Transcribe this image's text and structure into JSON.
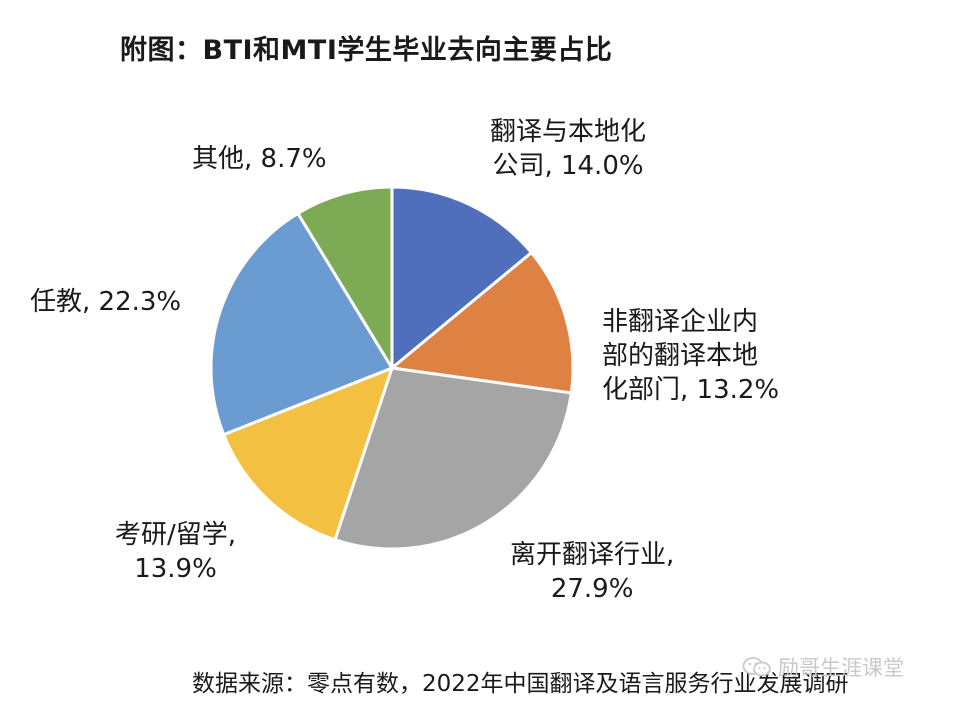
{
  "chart_data": {
    "type": "pie",
    "title": "附图：BTI和MTI学生毕业去向主要占比",
    "slices": [
      {
        "label": "翻译与本地化\n公司, 14.0%",
        "value": 14.0,
        "color": "#4f6fbd"
      },
      {
        "label": "非翻译企业内\n部的翻译本地\n化部门, 13.2%",
        "value": 13.2,
        "color": "#de8244"
      },
      {
        "label": "离开翻译行业,\n27.9%",
        "value": 27.9,
        "color": "#a5a5a5"
      },
      {
        "label": "考研/留学,\n13.9%",
        "value": 13.9,
        "color": "#f3c041"
      },
      {
        "label": "任教, 22.3%",
        "value": 22.3,
        "color": "#6a9bd1"
      },
      {
        "label": "其他, 8.7%",
        "value": 8.7,
        "color": "#7dab55"
      }
    ],
    "start_angle": "12 o'clock",
    "direction": "clockwise",
    "legend": "none"
  },
  "source": "数据来源：零点有数，2022年中国翻译及语言服务行业发展调研",
  "watermark": "励哥生涯课堂",
  "watermark_icon": "wechat-icon"
}
